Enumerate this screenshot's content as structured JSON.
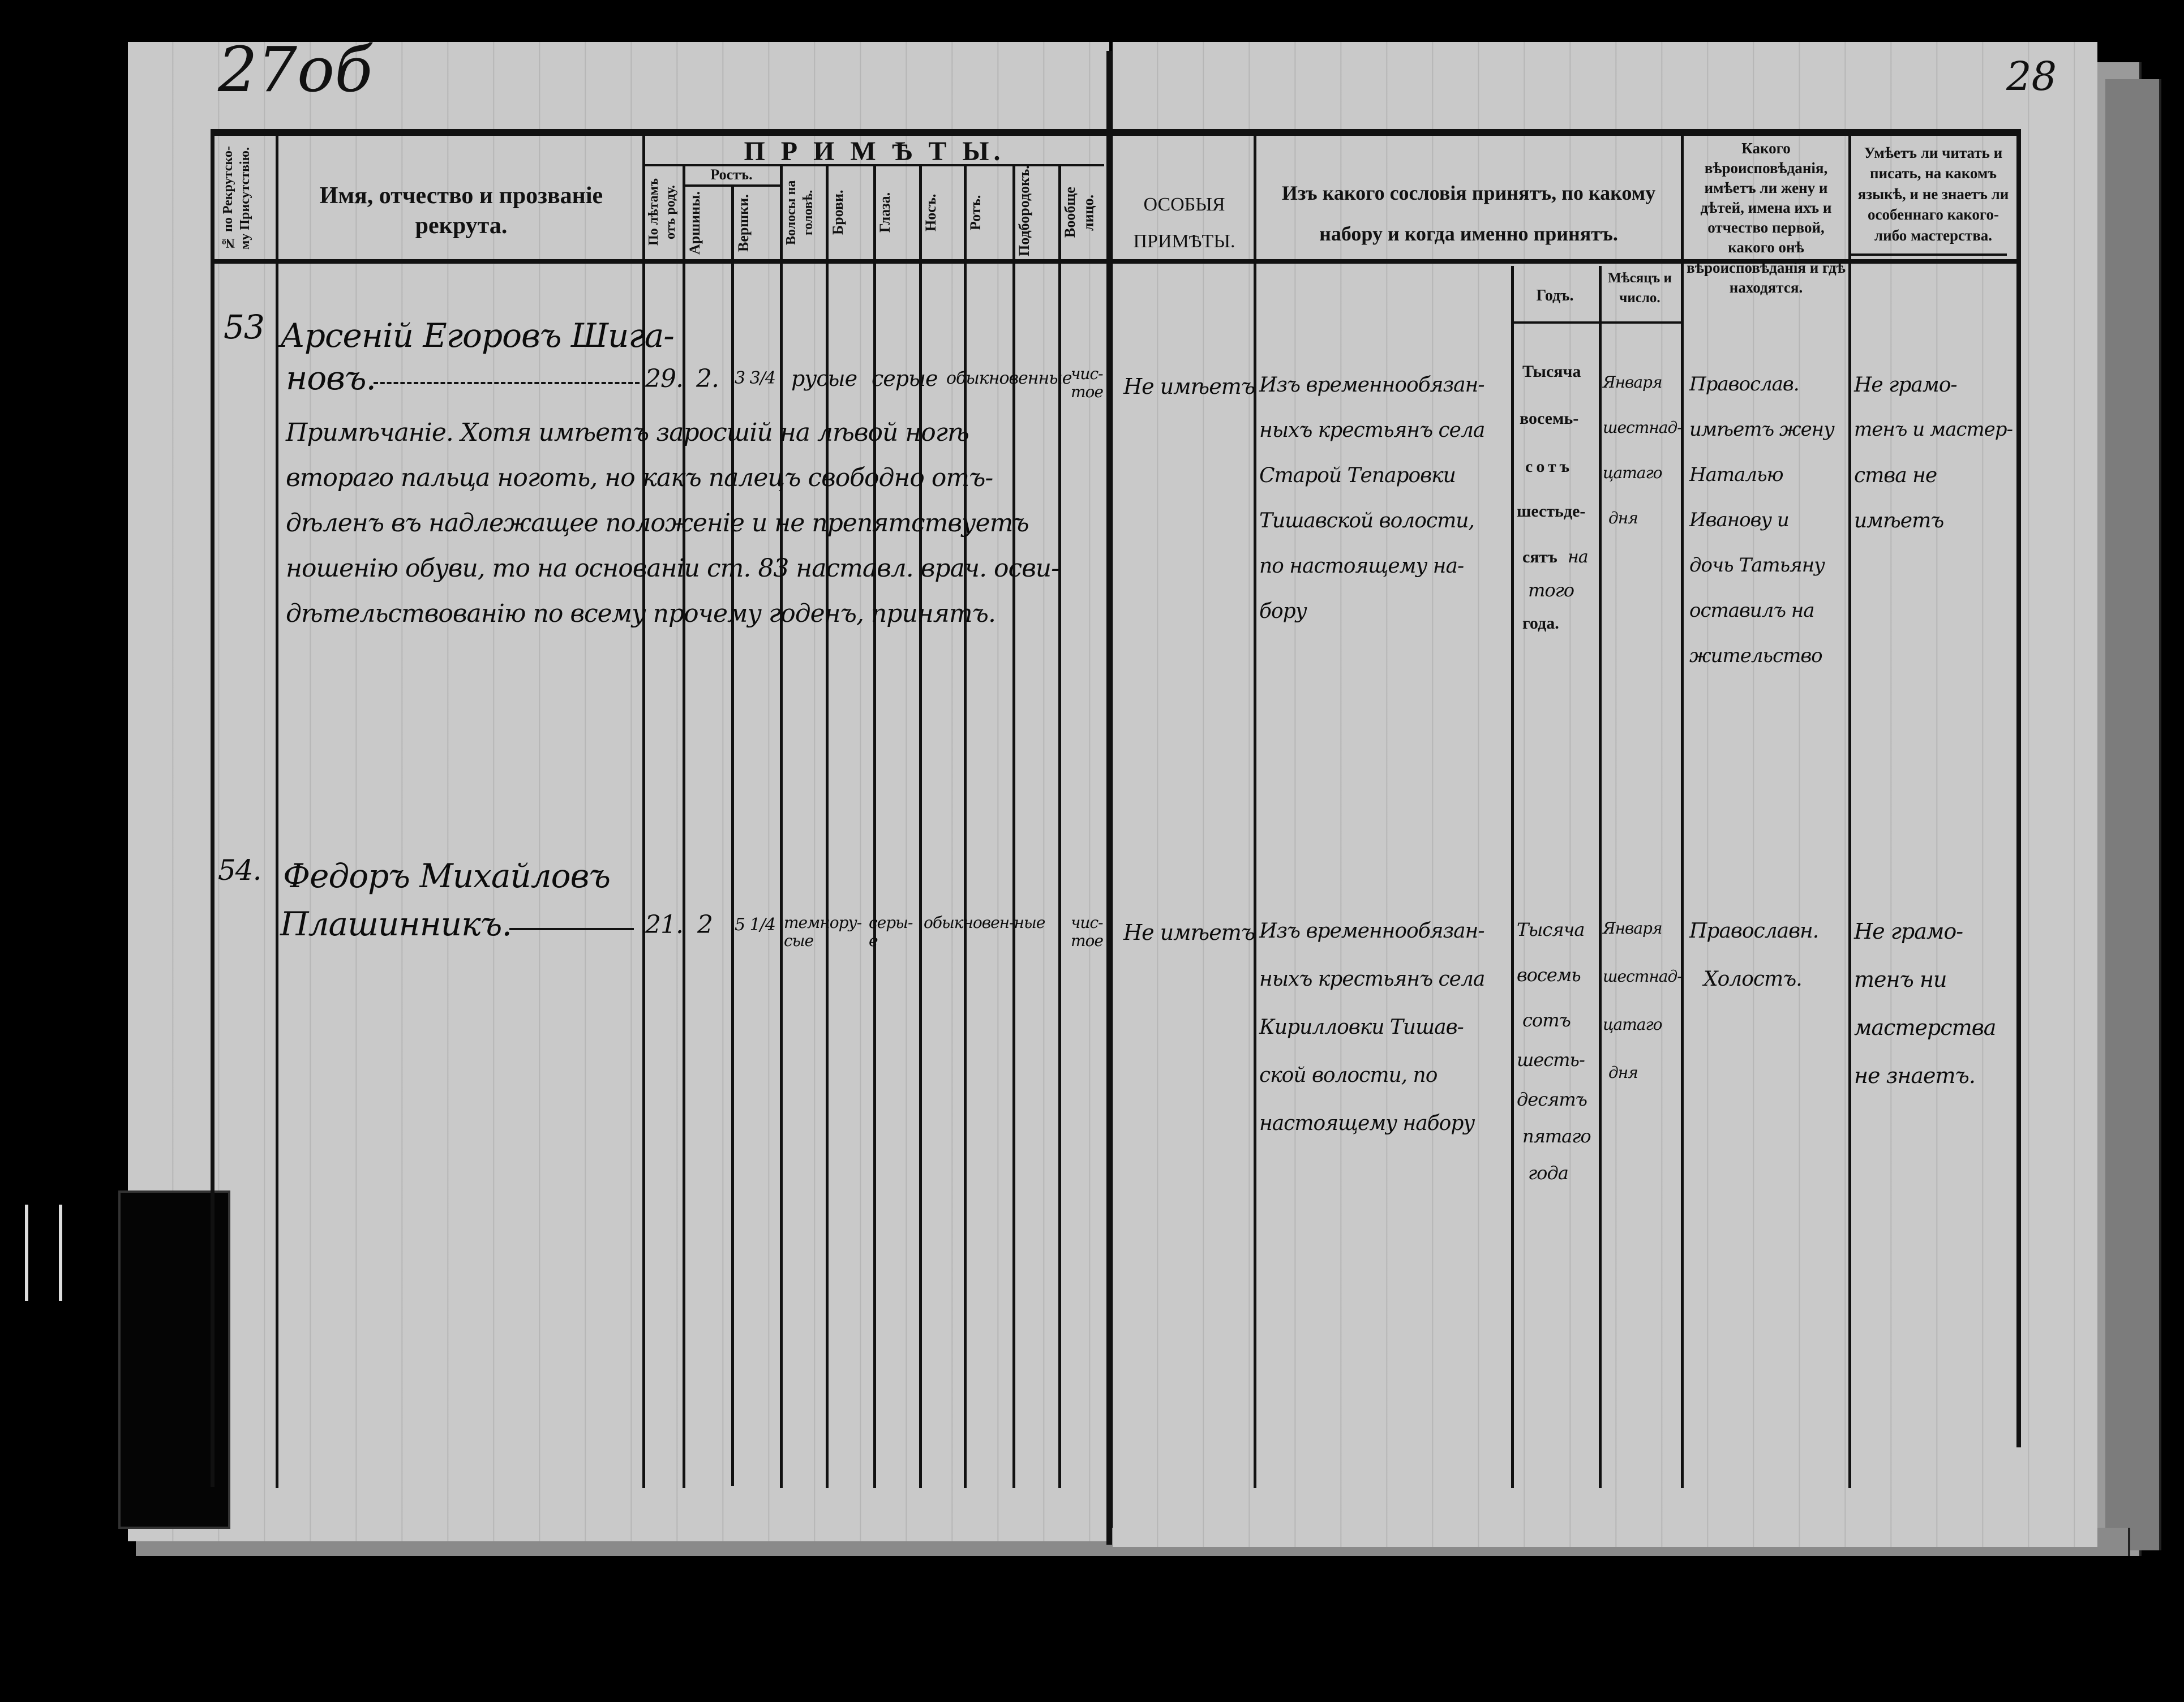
{
  "folio": {
    "left": "27об",
    "right": "28"
  },
  "header": {
    "col_number": "№ по Рекрутско-му Присутствію.",
    "col_name": "Имя, отчество и прозваніе рекрута.",
    "primety_title": "П Р И М Ѣ Т Ы.",
    "col_age": "По лѣтамъ отъ роду.",
    "rost": "Ростъ.",
    "col_arshin": "Аршины.",
    "col_vershki": "Вершки.",
    "col_hair": "Волосы на головѣ.",
    "col_brows": "Брови.",
    "col_eyes": "Глаза.",
    "col_nose": "Носъ.",
    "col_mouth": "Ротъ.",
    "col_chin": "Подбородокъ.",
    "col_face": "Вообще лицо.",
    "col_special": "ОСОБЫЯ ПРИМѢТЫ.",
    "col_estate": "Изъ какого сословія принятъ, по какому набору и когда именно принятъ.",
    "col_year": "Годъ.",
    "col_month": "Мѣсяцъ и число.",
    "col_religion": "Какого вѣроисповѣданія, имѣетъ ли жену и дѣтей, имена ихъ и отчество первой, какого онѣ вѣроисповѣданія и гдѣ находятся.",
    "col_literacy": "Умѣетъ ли читать и писать, на какомъ языкѣ, и не знаетъ ли особеннаго какого-либо мастерства."
  },
  "printed_year": [
    "Тысяча",
    "восемь-",
    "сотъ",
    "шестьде-",
    "сятъ",
    "года."
  ],
  "entries": [
    {
      "number": "53",
      "name": [
        "Арсеній Егоровъ Шига-",
        "новъ."
      ],
      "age": "29.",
      "arshin": "2.",
      "vershki": "3 3/4",
      "hair": "русые",
      "brows": "серые",
      "general": "обыкновенные",
      "face": "чис-тое",
      "note": [
        "Примѣчаніе. Хотя имѣетъ заросшій на лѣвой ногѣ",
        "втораго пальца ноготь, но какъ палецъ свободно отъ-",
        "дѣленъ въ надлежащее положеніе и не препятствуетъ",
        "ношенію обуви, то на основаніи ст. 83 наставл. врач. осви-",
        "дѣтельствованію по всему прочему годенъ, принятъ."
      ],
      "special": "Не имѣетъ",
      "estate": [
        "Изъ временнообязан-",
        "ныхъ крестьянъ села",
        "Старой Тепаровки",
        "Тишавской волости,",
        "по настоящему на-",
        "бору"
      ],
      "year_hand": [
        "на",
        "того"
      ],
      "month": [
        "Января",
        "шестнад-",
        "цатаго",
        "дня"
      ],
      "religion": [
        "Православ.",
        "имѣетъ жену",
        "Наталью",
        "Иванову и",
        "дочь Татьяну",
        "оставилъ на",
        "жительство"
      ],
      "literacy": [
        "Не грамо-",
        "тенъ и мастер-",
        "ства не",
        "имѣетъ"
      ]
    },
    {
      "number": "54.",
      "name": [
        "Федоръ Михайловъ",
        "Плашинникъ."
      ],
      "age": "21.",
      "arshin": "2",
      "vershki": "5 1/4",
      "hair": "темнору-сые",
      "brows": "серы-е",
      "general": "обыкновен-ные",
      "face": "чис-тое",
      "special": "Не имѣетъ",
      "estate": [
        "Изъ временнообязан-",
        "ныхъ крестьянъ села",
        "Кирилловки Тишав-",
        "ской волости, по",
        "настоящему набору"
      ],
      "year_hand": [
        "Тысяча",
        "восемь",
        "сотъ",
        "шесть-",
        "десятъ",
        "пятаго",
        "года"
      ],
      "month": [
        "Января",
        "шестнад-",
        "цатаго",
        "дня"
      ],
      "religion": [
        "Православн.",
        "Холостъ."
      ],
      "literacy": [
        "Не грамо-",
        "тенъ ни",
        "мастерства",
        "не знаетъ."
      ]
    }
  ]
}
